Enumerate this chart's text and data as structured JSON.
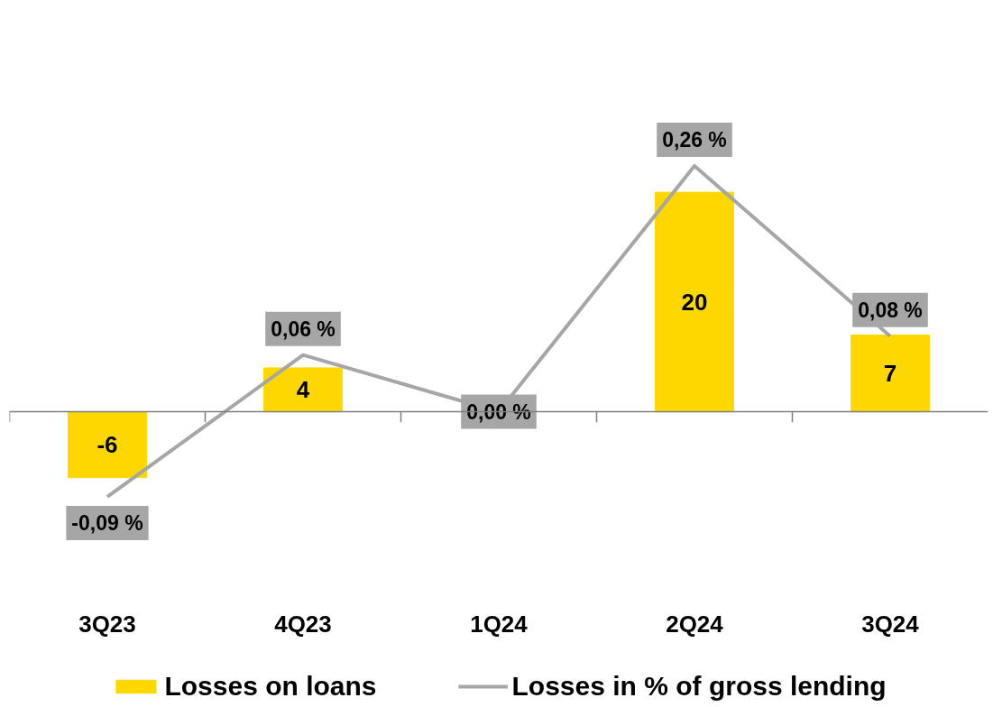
{
  "chart_data": {
    "type": "bar",
    "categories": [
      "3Q23",
      "4Q23",
      "1Q24",
      "2Q24",
      "3Q24"
    ],
    "series": [
      {
        "name": "Losses on loans",
        "color": "#ffd700",
        "values": [
          -6,
          4,
          null,
          20,
          7
        ],
        "value_labels": [
          "-6",
          "4",
          null,
          "20",
          "7"
        ]
      },
      {
        "name": "Losses in % of gross lending",
        "type": "line",
        "axis": "y2",
        "color": "#a6a6a6",
        "values": [
          -0.09,
          0.06,
          0.0,
          0.26,
          0.08
        ],
        "value_labels": [
          "-0,09 %",
          "0,06 %",
          "0,00 %",
          "0,26 %",
          "0,08 %"
        ]
      }
    ],
    "tick_labels": "x",
    "legend": "bottom"
  }
}
